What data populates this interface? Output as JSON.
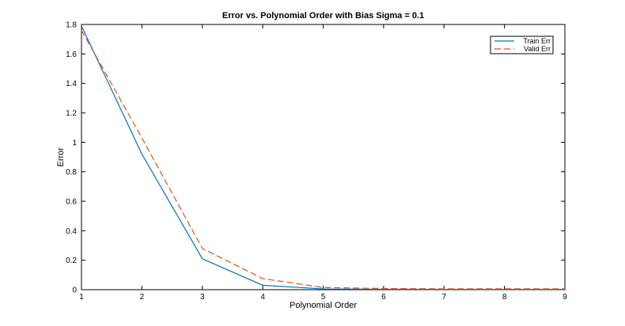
{
  "chart_data": {
    "type": "line",
    "title": "Error vs. Polynomial Order with Bias Sigma = 0.1",
    "xlabel": "Polynomial Order",
    "ylabel": "Error",
    "xlim": [
      1,
      9
    ],
    "ylim": [
      0,
      1.8
    ],
    "xticks": [
      "1",
      "2",
      "3",
      "4",
      "5",
      "6",
      "7",
      "8",
      "9"
    ],
    "yticks": [
      "0",
      "0.2",
      "0.4",
      "0.6",
      "0.8",
      "1",
      "1.2",
      "1.4",
      "1.6",
      "1.8"
    ],
    "x": [
      1,
      2,
      3,
      4,
      5,
      6,
      7,
      8,
      9
    ],
    "grid": false,
    "legend_position": "top-right",
    "series": [
      {
        "name": "Train Err",
        "style": "solid",
        "color": "#0072BD",
        "values": [
          1.79,
          0.92,
          0.21,
          0.03,
          0.005,
          0.003,
          0.002,
          0.002,
          0.002
        ]
      },
      {
        "name": "Valid Err",
        "style": "dashed",
        "color": "#D95319",
        "values": [
          1.76,
          1.03,
          0.28,
          0.075,
          0.015,
          0.008,
          0.006,
          0.006,
          0.006
        ]
      }
    ]
  }
}
